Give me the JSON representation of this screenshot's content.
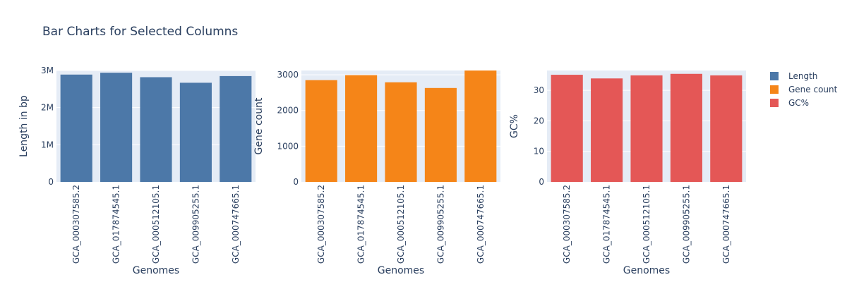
{
  "title": "Bar Charts for Selected Columns",
  "legend": [
    {
      "label": "Length",
      "color": "#4c78a8"
    },
    {
      "label": "Gene count",
      "color": "#f58518"
    },
    {
      "label": "GC%",
      "color": "#e45756"
    }
  ],
  "chart_data": [
    {
      "type": "bar",
      "title": "",
      "xlabel": "Genomes",
      "ylabel": "Length in bp",
      "categories": [
        "GCA_000307585.2",
        "GCA_017874545.1",
        "GCA_000512105.1",
        "GCA_009905255.1",
        "GCA_000747665.1"
      ],
      "series": [
        {
          "name": "Length",
          "values": [
            2890000,
            2940000,
            2820000,
            2670000,
            2850000
          ]
        }
      ],
      "ylim": [
        0,
        3000000
      ],
      "yticks": [
        0,
        1000000,
        2000000,
        3000000
      ],
      "yticklabels": [
        "0",
        "1M",
        "2M",
        "3M"
      ],
      "color": "#4c78a8"
    },
    {
      "type": "bar",
      "title": "",
      "xlabel": "Genomes",
      "ylabel": "Gene count",
      "categories": [
        "GCA_000307585.2",
        "GCA_017874545.1",
        "GCA_000512105.1",
        "GCA_009905255.1",
        "GCA_000747665.1"
      ],
      "series": [
        {
          "name": "Gene count",
          "values": [
            2850,
            2990,
            2790,
            2630,
            3120
          ]
        }
      ],
      "ylim": [
        0,
        3120
      ],
      "yticks": [
        0,
        1000,
        2000,
        3000
      ],
      "yticklabels": [
        "0",
        "1000",
        "2000",
        "3000"
      ],
      "color": "#f58518"
    },
    {
      "type": "bar",
      "title": "",
      "xlabel": "Genomes",
      "ylabel": "GC%",
      "categories": [
        "GCA_000307585.2",
        "GCA_017874545.1",
        "GCA_000512105.1",
        "GCA_009905255.1",
        "GCA_000747665.1"
      ],
      "series": [
        {
          "name": "GC%",
          "values": [
            35.1,
            33.9,
            34.9,
            35.4,
            34.9
          ]
        }
      ],
      "ylim": [
        0,
        36.5
      ],
      "yticks": [
        0,
        10,
        20,
        30
      ],
      "yticklabels": [
        "0",
        "10",
        "20",
        "30"
      ],
      "color": "#e45756"
    }
  ]
}
